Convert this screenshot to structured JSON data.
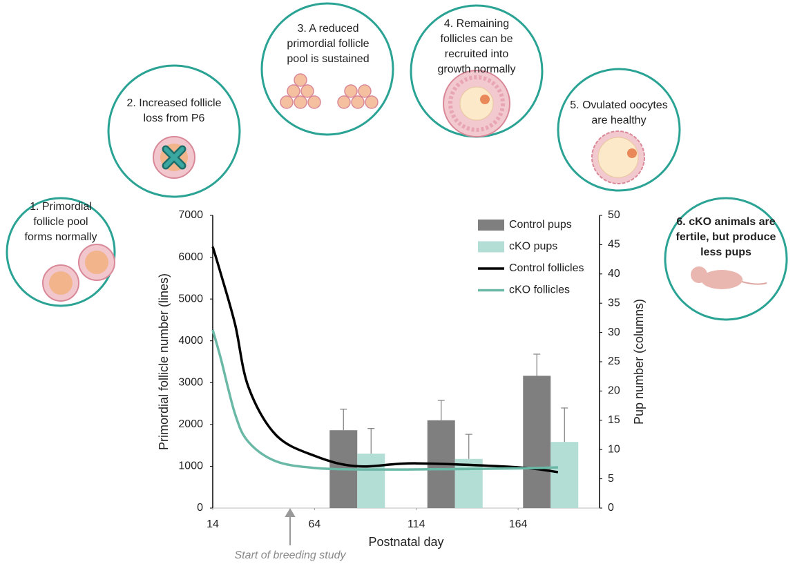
{
  "chart_data": {
    "type": "bar-line",
    "xlabel": "Postnatal day",
    "ylabel": "Primordial follicle number (lines)",
    "y2label": "Pup number (columns)",
    "xlim": [
      14,
      204
    ],
    "xticks": [
      14,
      64,
      114,
      164
    ],
    "ylim": [
      0,
      7000
    ],
    "yticks": [
      0,
      1000,
      2000,
      3000,
      4000,
      5000,
      6000,
      7000
    ],
    "y2lim": [
      0,
      50
    ],
    "y2ticks": [
      0,
      5,
      10,
      15,
      20,
      25,
      30,
      35,
      40,
      45,
      50
    ],
    "series": [
      {
        "name": "Control pups",
        "type": "bar",
        "axis": "y2",
        "color": "#7f7f7f",
        "x": [
          85,
          133,
          180
        ],
        "values": [
          13.3,
          15.0,
          22.6
        ],
        "errors": [
          3.6,
          3.4,
          3.7
        ]
      },
      {
        "name": "cKO pups",
        "type": "bar",
        "axis": "y2",
        "color": "#b3ded5",
        "x": [
          85,
          133,
          180
        ],
        "values": [
          9.3,
          8.4,
          11.3
        ],
        "errors": [
          4.3,
          4.2,
          5.8
        ]
      },
      {
        "name": "Control follicles",
        "type": "line",
        "color": "#000000",
        "x": [
          14,
          18,
          25,
          31.5,
          45,
          64,
          85,
          114,
          164,
          183.6
        ],
        "values": [
          6250,
          5600,
          4390,
          2900,
          1750,
          1250,
          1000,
          1070,
          975,
          860
        ]
      },
      {
        "name": "cKO follicles",
        "type": "line",
        "color": "#6ab8a6",
        "x": [
          14,
          18,
          25,
          31.5,
          45,
          64,
          85,
          114,
          164,
          183.6
        ],
        "values": [
          4260,
          3570,
          2245,
          1585,
          1120,
          960,
          925,
          925,
          950,
          975
        ]
      }
    ],
    "annotations": [
      {
        "text": "Start of breeding study",
        "x": 52
      },
      {
        "lines": [
          "1. Primordial",
          "follicle pool",
          "forms normally"
        ]
      },
      {
        "lines": [
          "2. Increased follicle",
          "loss from P6"
        ]
      },
      {
        "lines": [
          "3. A reduced",
          "primordial follicle",
          "pool is sustained"
        ]
      },
      {
        "lines": [
          "4. Remaining",
          "follicles can be",
          "recruited into",
          "growth normally"
        ]
      },
      {
        "lines": [
          "5. Ovulated oocytes",
          "are healthy"
        ]
      },
      {
        "lines": [
          "6. cKO animals are",
          "fertile, but produce",
          "less pups"
        ],
        "bold": true
      }
    ]
  }
}
